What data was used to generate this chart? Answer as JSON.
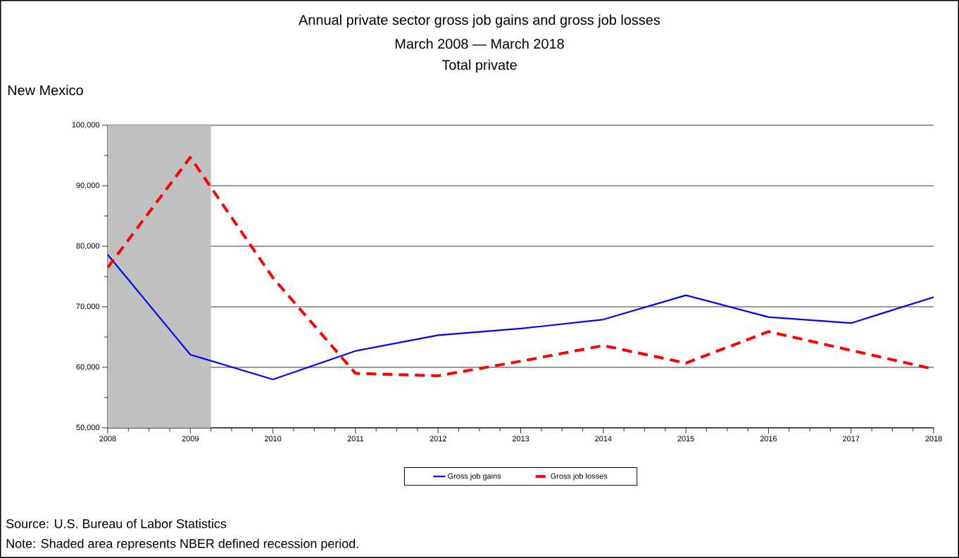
{
  "chart_data": {
    "type": "line",
    "title": "Annual private sector gross job gains and gross job losses",
    "subtitle": "March 2008 — March 2018",
    "annotations": [
      "Total private",
      "New Mexico",
      "Source: U.S. Bureau of Labor Statistics",
      "Note: Shaded area represents NBER defined recession period."
    ],
    "x": [
      2008,
      2009,
      2010,
      2011,
      2012,
      2013,
      2014,
      2015,
      2016,
      2017,
      2018
    ],
    "series": [
      {
        "name": "Gross job gains",
        "color": "#0000ff",
        "line_style": "solid",
        "values": [
          78600,
          62100,
          58000,
          62700,
          65300,
          66400,
          67900,
          71900,
          68300,
          67300,
          71600
        ]
      },
      {
        "name": "Gross job losses",
        "color": "#ff0000",
        "line_style": "dashed",
        "values": [
          76500,
          94700,
          74800,
          59000,
          58600,
          61000,
          63600,
          60700,
          65900,
          62800,
          59700
        ]
      }
    ],
    "xlim": [
      2008,
      2018
    ],
    "xticks": [
      2008,
      2009,
      2010,
      2011,
      2012,
      2013,
      2014,
      2015,
      2016,
      2017,
      2018
    ],
    "ylim": [
      50000,
      100000
    ],
    "yticks": [
      {
        "value": 50000,
        "label": "50,000"
      },
      {
        "value": 60000,
        "label": "60,000"
      },
      {
        "value": 70000,
        "label": "70,000"
      },
      {
        "value": 80000,
        "label": "80,000"
      },
      {
        "value": 90000,
        "label": "90,000"
      },
      {
        "value": 100000,
        "label": "100,000"
      }
    ],
    "bands": [
      {
        "axis": "x",
        "from": 2008,
        "to": 2009.25,
        "color": "#c0c0c0"
      }
    ],
    "grid": "y",
    "legend": "bottom",
    "marker": "none"
  }
}
